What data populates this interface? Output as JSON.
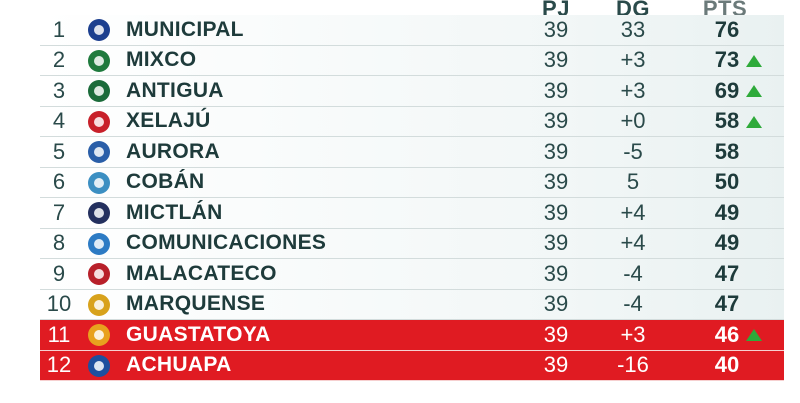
{
  "headers": {
    "pj": "PJ",
    "dg": "DG",
    "pts": "PTS"
  },
  "colors": {
    "text": "#1e3b3b",
    "relegation": "#e01b22",
    "arrow_up": "#2eaa3a"
  },
  "rows": [
    {
      "pos": "1",
      "team": "MUNICIPAL",
      "pj": "39",
      "dg": "33",
      "pts": "76",
      "trend": "none",
      "highlight": false,
      "logo_color": "#1c3f8f"
    },
    {
      "pos": "2",
      "team": "MIXCO",
      "pj": "39",
      "dg": "+3",
      "pts": "73",
      "trend": "up",
      "highlight": false,
      "logo_color": "#1f7a3d"
    },
    {
      "pos": "3",
      "team": "ANTIGUA",
      "pj": "39",
      "dg": "+3",
      "pts": "69",
      "trend": "up",
      "highlight": false,
      "logo_color": "#1b6b3a"
    },
    {
      "pos": "4",
      "team": "XELAJÚ",
      "pj": "39",
      "dg": "+0",
      "pts": "58",
      "trend": "up",
      "highlight": false,
      "logo_color": "#c8202a"
    },
    {
      "pos": "5",
      "team": "AURORA",
      "pj": "39",
      "dg": "-5",
      "pts": "58",
      "trend": "none",
      "highlight": false,
      "logo_color": "#2a5ea8"
    },
    {
      "pos": "6",
      "team": "COBÁN",
      "pj": "39",
      "dg": "5",
      "pts": "50",
      "trend": "none",
      "highlight": false,
      "logo_color": "#3c8fc2"
    },
    {
      "pos": "7",
      "team": "MICTLÁN",
      "pj": "39",
      "dg": "+4",
      "pts": "49",
      "trend": "none",
      "highlight": false,
      "logo_color": "#24305e"
    },
    {
      "pos": "8",
      "team": "COMUNICACIONES",
      "pj": "39",
      "dg": "+4",
      "pts": "49",
      "trend": "none",
      "highlight": false,
      "logo_color": "#2d7bc4"
    },
    {
      "pos": "9",
      "team": "MALACATECO",
      "pj": "39",
      "dg": "-4",
      "pts": "47",
      "trend": "none",
      "highlight": false,
      "logo_color": "#b8202a"
    },
    {
      "pos": "10",
      "team": "MARQUENSE",
      "pj": "39",
      "dg": "-4",
      "pts": "47",
      "trend": "none",
      "highlight": false,
      "logo_color": "#d8a21c"
    },
    {
      "pos": "11",
      "team": "GUASTATOYA",
      "pj": "39",
      "dg": "+3",
      "pts": "46",
      "trend": "up",
      "highlight": true,
      "logo_color": "#e8a11e"
    },
    {
      "pos": "12",
      "team": "ACHUAPA",
      "pj": "39",
      "dg": "-16",
      "pts": "40",
      "trend": "none",
      "highlight": true,
      "logo_color": "#1e4f9e"
    }
  ]
}
